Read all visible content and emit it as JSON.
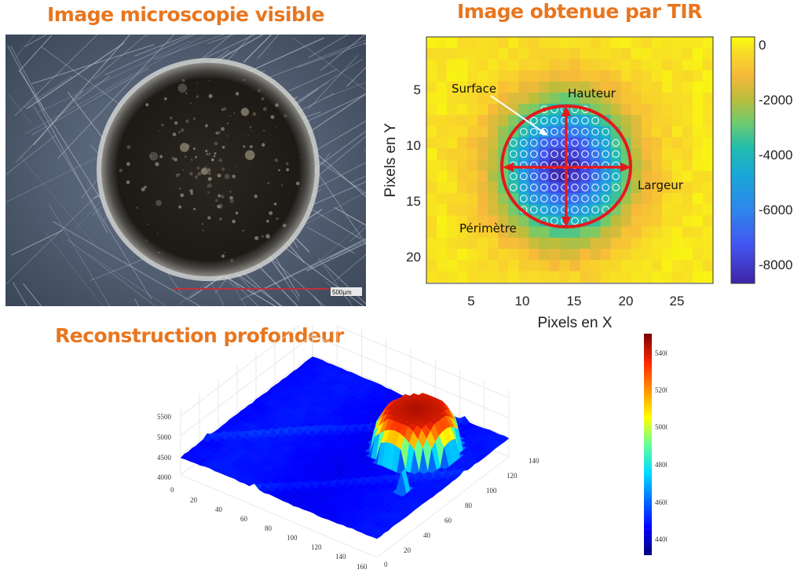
{
  "titles": {
    "microscopy": "Image microscopie visible",
    "tir": "Image obtenue par TIR",
    "reconstruction": "Reconstruction profondeur"
  },
  "microscopy": {
    "scale_label": "500µm"
  },
  "colors": {
    "title": "#E8761E",
    "annotation": "#E41A1A"
  },
  "chart_data": [
    {
      "type": "heatmap",
      "title": "Image obtenue par TIR",
      "xlabel": "Pixels en X",
      "ylabel": "Pixels en Y",
      "xlim": [
        0.5,
        28.5
      ],
      "ylim": [
        0.5,
        22.6
      ],
      "xticks": [
        "5",
        "10",
        "15",
        "20",
        "25"
      ],
      "yticks": [
        "5",
        "10",
        "15",
        "20"
      ],
      "colorbar": {
        "range": [
          -8700,
          300
        ],
        "ticks": [
          "0",
          "-2000",
          "-4000",
          "-6000",
          "-8000"
        ]
      },
      "colormap": "parula",
      "center": {
        "x": 14,
        "y": 12.2
      },
      "min_value": -8500,
      "annotations": [
        "Surface",
        "Hauteur",
        "Largeur",
        "Périmètre"
      ]
    },
    {
      "type": "surface3d",
      "title": "Reconstruction profondeur",
      "xticks": [
        "0",
        "20",
        "40",
        "60",
        "80",
        "100",
        "120",
        "140",
        "160"
      ],
      "yticks": [
        "0",
        "20",
        "40",
        "60",
        "80",
        "100",
        "120",
        "140"
      ],
      "zticks": [
        "4000",
        "4500",
        "5000",
        "5500"
      ],
      "colorbar": {
        "range": [
          4300,
          5500
        ],
        "ticks": [
          "5400",
          "5200",
          "5000",
          "4800",
          "4600",
          "4400"
        ]
      },
      "colormap": "jet",
      "baseline": 4450,
      "peak": 5450
    }
  ]
}
